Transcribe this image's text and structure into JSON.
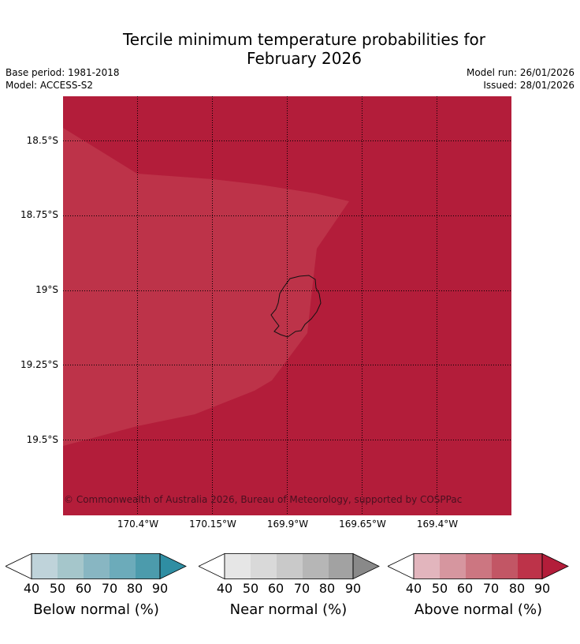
{
  "title": {
    "line1": "Tercile minimum temperature probabilities for",
    "line2": "February 2026"
  },
  "meta": {
    "base_period": "Base period: 1981-2018",
    "model": "Model: ACCESS-S2",
    "model_run": "Model run: 26/01/2026",
    "issued": "Issued: 28/01/2026"
  },
  "map": {
    "lat_labels": [
      "18.5°S",
      "18.75°S",
      "19°S",
      "19.25°S",
      "19.5°S"
    ],
    "lon_labels": [
      "170.4°W",
      "170.15°W",
      "169.9°W",
      "169.65°W",
      "169.4°W"
    ],
    "copyright": "© Commonwealth of Australia 2026, Bureau of Meteorology, supported by COSPPac",
    "colors": {
      "above_90": "#b31d3a",
      "above_80": "#bd3349",
      "coast": "#111111",
      "grid": "#000000"
    }
  },
  "colorbars": {
    "ticks": [
      "40",
      "50",
      "60",
      "70",
      "80",
      "90"
    ],
    "below": {
      "label": "Below normal (%)",
      "colors": [
        "#bfd3da",
        "#a5c6cb",
        "#88b6c2",
        "#6cabba",
        "#4c9bac",
        "#2f8ea3"
      ]
    },
    "near": {
      "label": "Near normal (%)",
      "colors": [
        "#e6e6e6",
        "#d9d9d9",
        "#c9c9c9",
        "#b6b6b6",
        "#a2a2a2",
        "#898989"
      ]
    },
    "above": {
      "label": "Above normal (%)",
      "colors": [
        "#e2b5bd",
        "#d6969f",
        "#cc7681",
        "#c25665",
        "#bd3349",
        "#b31d3a"
      ]
    }
  }
}
